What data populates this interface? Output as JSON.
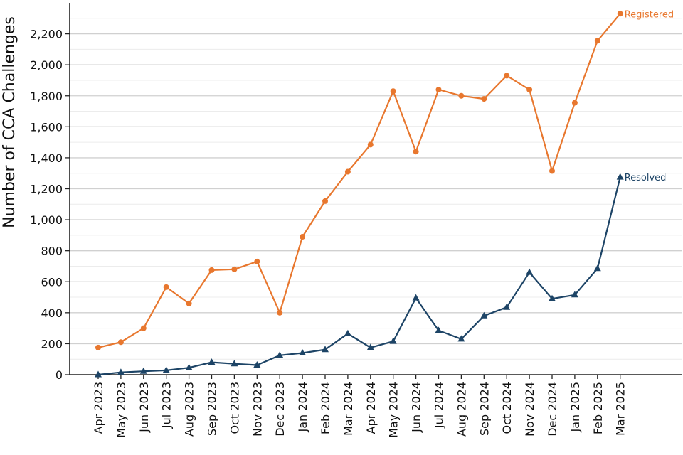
{
  "chart_data": {
    "type": "line",
    "ylabel": "Number of CCA Challenges",
    "xlabel": "",
    "title": "",
    "ylim": [
      0,
      2400
    ],
    "y_ticks": [
      0,
      200,
      400,
      600,
      800,
      1000,
      1200,
      1400,
      1600,
      1800,
      2000,
      2200
    ],
    "y_tick_labels": [
      "0",
      "200",
      "400",
      "600",
      "800",
      "1,000",
      "1,200",
      "1,400",
      "1,600",
      "1,800",
      "2,000",
      "2,200"
    ],
    "grid": true,
    "categories": [
      "Apr 2023",
      "May 2023",
      "Jun 2023",
      "Jul 2023",
      "Aug 2023",
      "Sep 2023",
      "Oct 2023",
      "Nov 2023",
      "Dec 2023",
      "Jan 2024",
      "Feb 2024",
      "Mar 2024",
      "Apr 2024",
      "May 2024",
      "Jun 2024",
      "Jul 2024",
      "Aug 2024",
      "Sep 2024",
      "Oct 2024",
      "Nov 2024",
      "Dec 2024",
      "Jan 2025",
      "Feb 2025",
      "Mar 2025"
    ],
    "series": [
      {
        "name": "Registered",
        "color": "#e8772e",
        "marker": "circle",
        "values": [
          175,
          210,
          300,
          565,
          460,
          675,
          680,
          730,
          400,
          890,
          1120,
          1310,
          1485,
          1830,
          1440,
          1840,
          1800,
          1780,
          1930,
          1840,
          1315,
          1755,
          2155,
          2330
        ]
      },
      {
        "name": "Resolved",
        "color": "#1d4466",
        "marker": "triangle",
        "values": [
          0,
          15,
          22,
          28,
          45,
          80,
          70,
          62,
          125,
          140,
          162,
          265,
          175,
          215,
          495,
          285,
          230,
          380,
          435,
          660,
          490,
          515,
          685,
          1275
        ]
      }
    ]
  }
}
